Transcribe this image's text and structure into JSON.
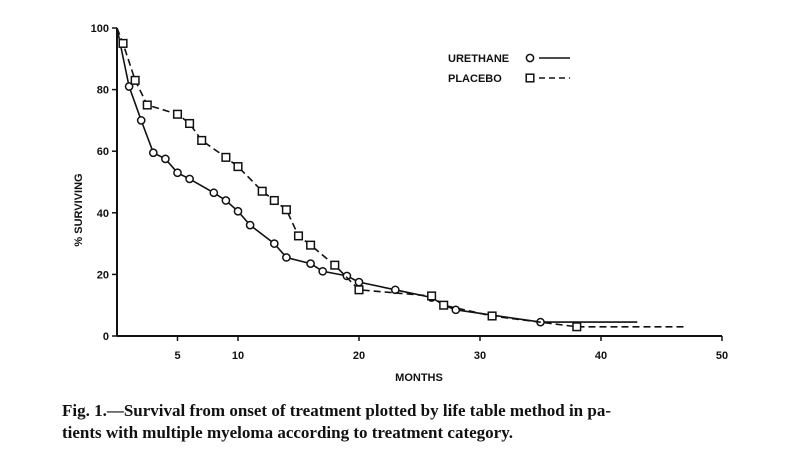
{
  "chart_data": {
    "type": "line",
    "title": "",
    "xlabel": "MONTHS",
    "ylabel": "% SURVIVING",
    "xlim": [
      0,
      50
    ],
    "ylim": [
      0,
      100
    ],
    "xticks": [
      5,
      10,
      20,
      30,
      40,
      50
    ],
    "yticks": [
      0,
      20,
      40,
      60,
      80,
      100
    ],
    "grid": false,
    "legend_position": "top-right",
    "series": [
      {
        "name": "URETHANE",
        "marker": "circle",
        "line": "solid",
        "x": [
          0,
          1,
          2,
          3,
          4,
          5,
          6,
          8,
          9,
          10,
          11,
          13,
          14,
          16,
          17,
          19,
          20,
          23,
          26,
          27,
          28,
          35,
          43
        ],
        "y": [
          100,
          81,
          70,
          59.5,
          57.5,
          53,
          51,
          46.5,
          44,
          40.5,
          36,
          30,
          25.5,
          23.5,
          21,
          19.5,
          17.5,
          15,
          12.5,
          10,
          8.5,
          4.5,
          4.5
        ]
      },
      {
        "name": "PLACEBO",
        "marker": "square",
        "line": "dashed",
        "x": [
          0,
          0.5,
          1.5,
          2.5,
          5,
          6,
          7,
          9,
          10,
          12,
          13,
          14,
          15,
          16,
          18,
          20,
          26,
          27,
          31,
          38,
          47
        ],
        "y": [
          100,
          95,
          83,
          75,
          72,
          69,
          63.5,
          58,
          55,
          47,
          44,
          41,
          32.5,
          29.5,
          23,
          15,
          13,
          10,
          6.5,
          3,
          3
        ]
      }
    ]
  },
  "caption": {
    "line1": "Fig. 1.—Survival from onset of treatment plotted by life table method in pa-",
    "line2": "tients with multiple myeloma according to treatment category."
  }
}
